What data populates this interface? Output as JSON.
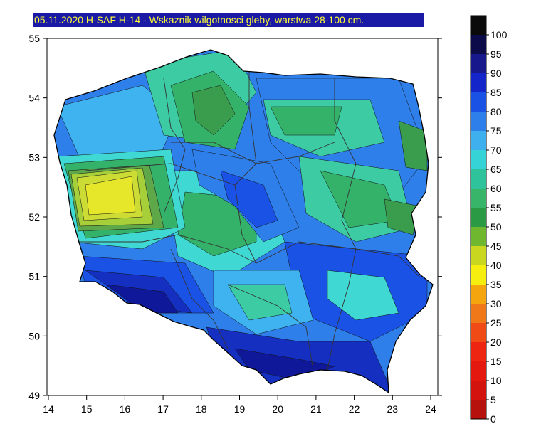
{
  "title": "05.11.2020 H-SAF H-14 - Wskaznik wilgotnosci gleby, warstwa 28-100 cm.",
  "x_ticks": [
    "14",
    "15",
    "16",
    "17",
    "18",
    "19",
    "20",
    "21",
    "22",
    "23",
    "24"
  ],
  "y_ticks": [
    "55",
    "54",
    "53",
    "52",
    "51",
    "50",
    "49"
  ],
  "legend": {
    "levels": [
      "100",
      "95",
      "90",
      "85",
      "80",
      "75",
      "70",
      "65",
      "60",
      "55",
      "50",
      "45",
      "40",
      "35",
      "30",
      "25",
      "20",
      "15",
      "10",
      "5",
      "0"
    ],
    "colors": [
      "#0a0a0a",
      "#0b0b4a",
      "#16188c",
      "#1426c9",
      "#1a52e6",
      "#2f7fea",
      "#3fb0ee",
      "#35d3d6",
      "#2ec39a",
      "#39b569",
      "#2b9a44",
      "#6fb72f",
      "#c9d81e",
      "#f6ee0f",
      "#f5a60f",
      "#f07818",
      "#f04a16",
      "#ee2510",
      "#e4180f",
      "#d2130e",
      "#b6110c"
    ]
  },
  "colors": {
    "c35": "#e6e62a",
    "c40": "#cddc34",
    "c45": "#a7cf3a",
    "c50": "#5fa84a",
    "c55": "#3a9d4e",
    "c60": "#35b26a",
    "c65": "#3ccba2",
    "c70": "#40d8d2",
    "c75": "#3fb3ef",
    "c80": "#2f7fea",
    "c85": "#1a52e6",
    "c90": "#1530c0",
    "c95": "#10189a"
  }
}
